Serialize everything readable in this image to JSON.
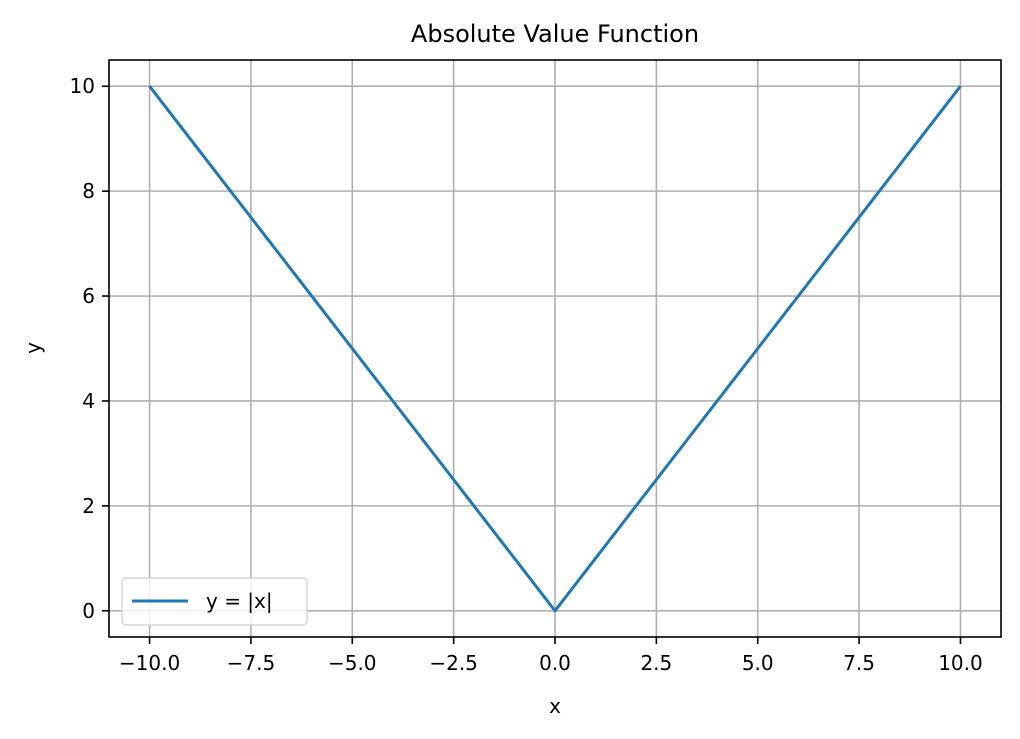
{
  "chart_data": {
    "type": "line",
    "title": "Absolute Value Function",
    "xlabel": "x",
    "ylabel": "y",
    "xlim": [
      -11,
      11
    ],
    "ylim": [
      -0.5,
      10.5
    ],
    "xticks": [
      -10.0,
      -7.5,
      -5.0,
      -2.5,
      0.0,
      2.5,
      5.0,
      7.5,
      10.0
    ],
    "xtick_labels": [
      "−10.0",
      "−7.5",
      "−5.0",
      "−2.5",
      "0.0",
      "2.5",
      "5.0",
      "7.5",
      "10.0"
    ],
    "yticks": [
      0,
      2,
      4,
      6,
      8,
      10
    ],
    "ytick_labels": [
      "0",
      "2",
      "4",
      "6",
      "8",
      "10"
    ],
    "grid": true,
    "legend": {
      "position": "lower-left"
    },
    "series": [
      {
        "name": "y = |x|",
        "color": "#1f77b4",
        "x": [
          -10,
          0,
          10
        ],
        "y": [
          10,
          0,
          10
        ]
      }
    ]
  }
}
